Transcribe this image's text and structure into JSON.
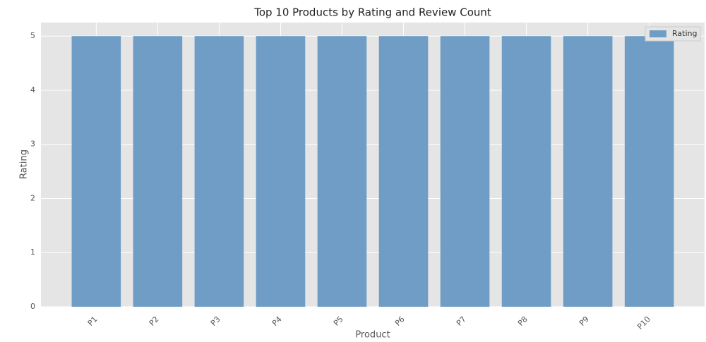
{
  "chart_data": {
    "type": "bar",
    "title": "Top 10 Products by Rating and Review Count",
    "x_label": "Product",
    "y_label": "Rating",
    "categories": [
      "P1",
      "P2",
      "P3",
      "P4",
      "P5",
      "P6",
      "P7",
      "P8",
      "P9",
      "P10"
    ],
    "series": [
      {
        "name": "Rating",
        "color": "#6f9dc5",
        "values": [
          5,
          5,
          5,
          5,
          5,
          5,
          5,
          5,
          5,
          5
        ]
      }
    ],
    "ylim": [
      0,
      5.25
    ],
    "yticks": [
      0,
      1,
      2,
      3,
      4,
      5
    ],
    "grid": true,
    "legend": "upper right"
  }
}
